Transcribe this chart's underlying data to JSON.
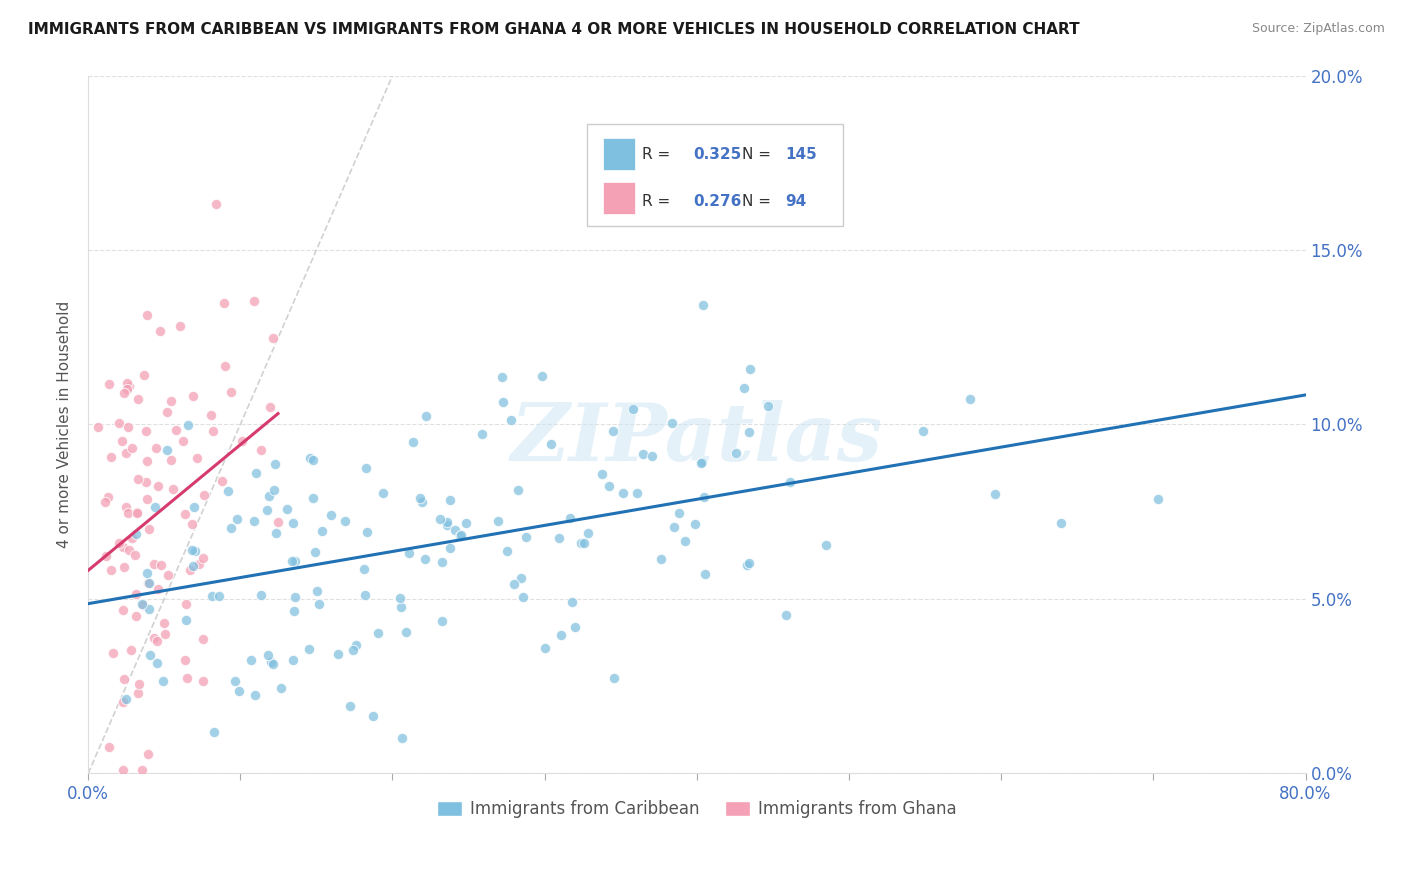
{
  "title": "IMMIGRANTS FROM CARIBBEAN VS IMMIGRANTS FROM GHANA 4 OR MORE VEHICLES IN HOUSEHOLD CORRELATION CHART",
  "source": "Source: ZipAtlas.com",
  "ylabel": "4 or more Vehicles in Household",
  "legend_caribbean": {
    "label": "Immigrants from Caribbean",
    "R": 0.325,
    "N": 145,
    "color": "#7fbfdf"
  },
  "legend_ghana": {
    "label": "Immigrants from Ghana",
    "R": 0.276,
    "N": 94,
    "color": "#f4a0b5"
  },
  "watermark": "ZIPatlas",
  "xlim": [
    0.0,
    0.8
  ],
  "ylim": [
    0.0,
    0.2
  ],
  "caribbean_trend_color": "#2171b5",
  "ghana_trend_color": "#d63b6e",
  "reference_line_color": "#cccccc",
  "background_color": "#ffffff"
}
